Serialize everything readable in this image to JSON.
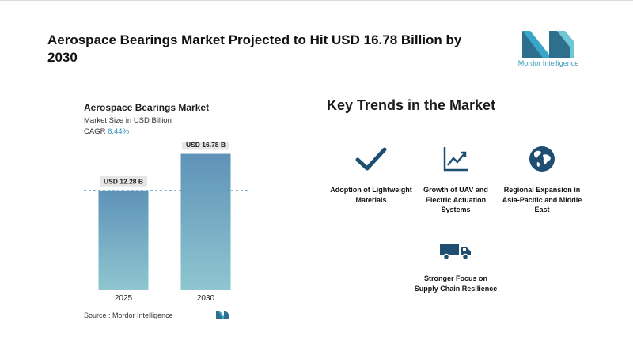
{
  "header": {
    "title": "Aerospace Bearings Market Projected to Hit USD 16.78 Billion by 2030",
    "logo_text": "Mordor Intelligence"
  },
  "chart_card": {
    "title": "Aerospace Bearings Market",
    "subtitle": "Market Size in USD Billion",
    "cagr_label": "CAGR",
    "cagr_value": "6.44%",
    "source_label": "Source :",
    "source_value": "Mordor Intelligence"
  },
  "chart_data": {
    "type": "bar",
    "title": "Aerospace Bearings Market",
    "categories": [
      "2025",
      "2030"
    ],
    "values": [
      12.28,
      16.78
    ],
    "data_labels": [
      "USD 12.28 B",
      "USD 16.78 B"
    ],
    "ylim": [
      0,
      18
    ],
    "grid": false,
    "reference_line": "dashed line at 2025 value",
    "colors": {
      "bar_top": "#5f92b8",
      "bar_bottom": "#8fc6d0",
      "label_bg": "#e6e6e6",
      "ref_line": "#5b9fc6"
    }
  },
  "trends": {
    "title": "Key Trends in the Market",
    "items": [
      {
        "icon": "checkmark-icon",
        "label": "Adoption of Lightweight Materials"
      },
      {
        "icon": "growth-chart-icon",
        "label": "Growth of UAV and Electric Actuation Systems"
      },
      {
        "icon": "globe-icon",
        "label": "Regional Expansion in Asia-Pacific and Middle East"
      },
      {
        "icon": "truck-icon",
        "label": "Stronger Focus on Supply Chain Resilience"
      }
    ],
    "icon_color": "#1e4f73"
  }
}
